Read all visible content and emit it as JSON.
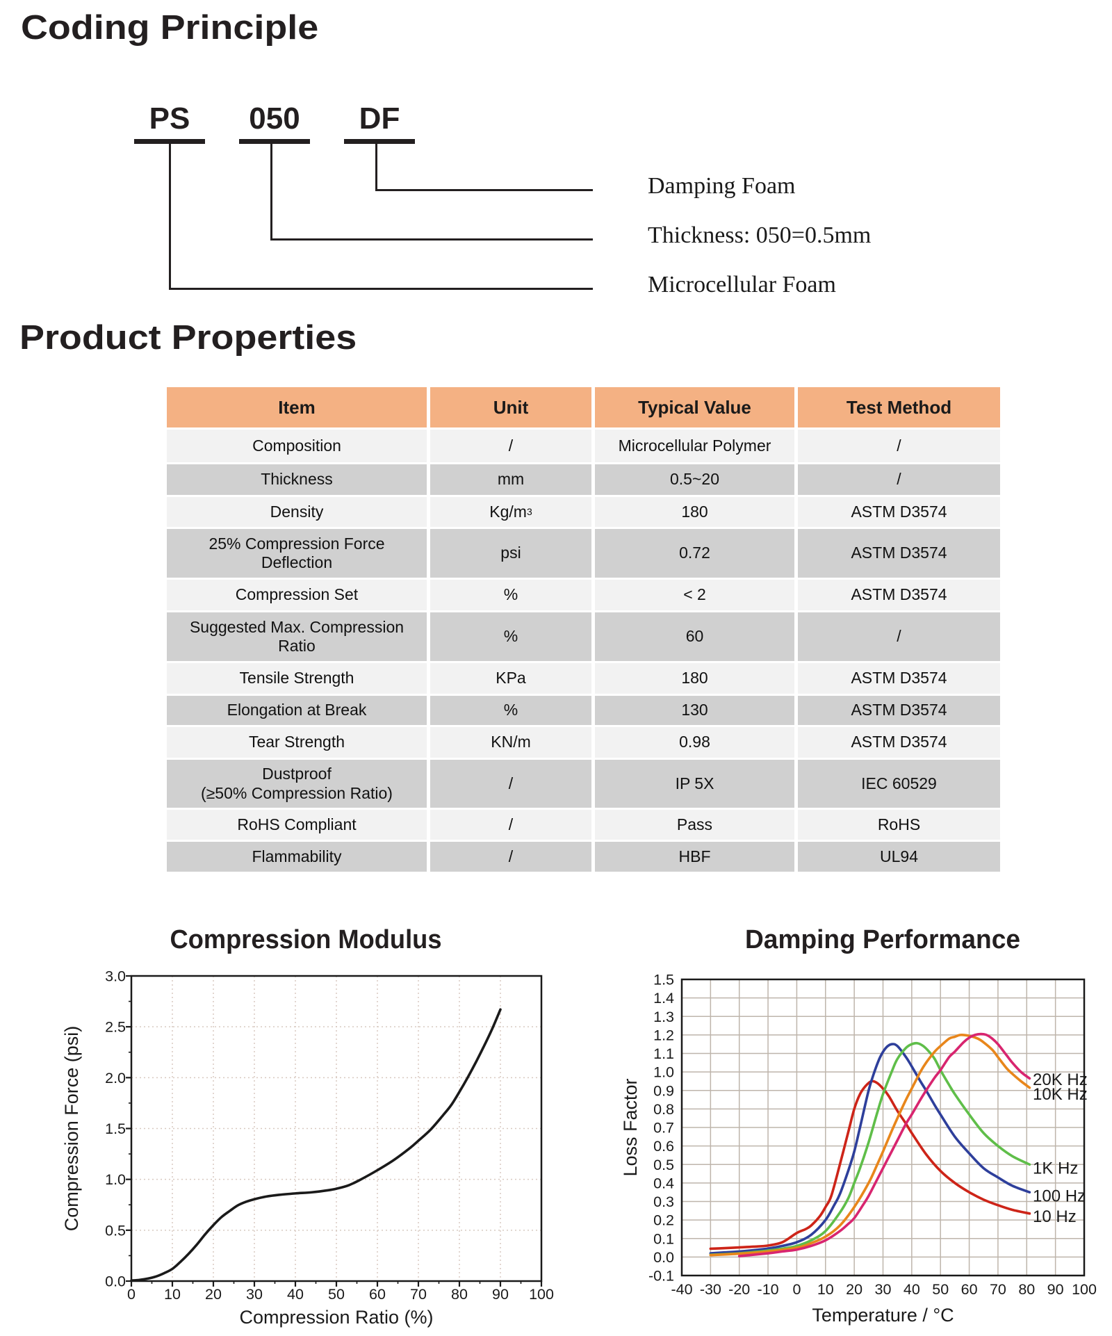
{
  "page": {
    "background": "#ffffff",
    "coding_title": "Coding Principle",
    "properties_title": "Product Properties"
  },
  "coding_diagram": {
    "codes": [
      {
        "code": "PS",
        "label": "Microcellular Foam"
      },
      {
        "code": "050",
        "label": "Thickness: 050=0.5mm"
      },
      {
        "code": "DF",
        "label": "Damping Foam"
      }
    ]
  },
  "properties_table": {
    "columns": [
      "Item",
      "Unit",
      "Typical Value",
      "Test Method"
    ],
    "header_bg": "#f4b183",
    "row_bg_light": "#f2f2f2",
    "row_bg_dark": "#d0d0d0",
    "rows": [
      {
        "item": "Composition",
        "unit": "/",
        "value": "Microcellular Polymer",
        "method": "/"
      },
      {
        "item": "Thickness",
        "unit": "mm",
        "value": "0.5~20",
        "method": "/"
      },
      {
        "item": "Density",
        "unit": "Kg/m³",
        "value": "180",
        "method": "ASTM D3574"
      },
      {
        "item": "25% Compression Force\nDeflection",
        "unit": "psi",
        "value": "0.72",
        "method": "ASTM D3574"
      },
      {
        "item": "Compression Set",
        "unit": "%",
        "value": "< 2",
        "method": "ASTM D3574"
      },
      {
        "item": "Suggested Max. Compression\nRatio",
        "unit": "%",
        "value": "60",
        "method": "/"
      },
      {
        "item": "Tensile Strength",
        "unit": "KPa",
        "value": "180",
        "method": "ASTM D3574"
      },
      {
        "item": "Elongation at Break",
        "unit": "%",
        "value": "130",
        "method": "ASTM D3574"
      },
      {
        "item": "Tear Strength",
        "unit": "KN/m",
        "value": "0.98",
        "method": "ASTM D3574"
      },
      {
        "item": "Dustproof\n(≥50% Compression Ratio)",
        "unit": "/",
        "value": "IP 5X",
        "method": "IEC 60529"
      },
      {
        "item": "RoHS Compliant",
        "unit": "/",
        "value": "Pass",
        "method": "RoHS"
      },
      {
        "item": "Flammability",
        "unit": "/",
        "value": "HBF",
        "method": "UL94"
      }
    ]
  },
  "chart_data": [
    {
      "type": "line",
      "title": "Compression Modulus",
      "xlabel": "Compression Ratio (%)",
      "ylabel": "Compression Force (psi)",
      "xlim": [
        0,
        100
      ],
      "ylim": [
        0.0,
        3.0
      ],
      "x_major_step": 10,
      "x_minor_step": 5,
      "y_major_step": 0.5,
      "y_minor_step": 0.25,
      "x_tick_labels": [
        "0",
        "10",
        "20",
        "30",
        "40",
        "50",
        "60",
        "70",
        "80",
        "90",
        "100"
      ],
      "y_tick_labels": [
        "0.0",
        "0.5",
        "1.0",
        "1.5",
        "2.0",
        "2.5",
        "3.0"
      ],
      "grid": "dotted",
      "grid_color": "#d8c9c0",
      "legend_position": "none",
      "series": [
        {
          "name": "compression force",
          "color": "#1a1a1a",
          "points": [
            [
              0,
              0.005
            ],
            [
              2,
              0.012
            ],
            [
              4,
              0.025
            ],
            [
              6,
              0.045
            ],
            [
              8,
              0.078
            ],
            [
              10,
              0.12
            ],
            [
              12,
              0.19
            ],
            [
              14,
              0.27
            ],
            [
              16,
              0.36
            ],
            [
              18,
              0.46
            ],
            [
              20,
              0.55
            ],
            [
              22,
              0.63
            ],
            [
              24,
              0.69
            ],
            [
              26,
              0.745
            ],
            [
              28,
              0.78
            ],
            [
              30,
              0.805
            ],
            [
              33,
              0.832
            ],
            [
              36,
              0.848
            ],
            [
              40,
              0.862
            ],
            [
              44,
              0.873
            ],
            [
              48,
              0.893
            ],
            [
              50,
              0.908
            ],
            [
              53,
              0.942
            ],
            [
              56,
              1.0
            ],
            [
              60,
              1.09
            ],
            [
              64,
              1.19
            ],
            [
              68,
              1.31
            ],
            [
              70,
              1.38
            ],
            [
              73,
              1.49
            ],
            [
              76,
              1.63
            ],
            [
              78,
              1.73
            ],
            [
              80,
              1.86
            ],
            [
              82,
              2.0
            ],
            [
              84,
              2.15
            ],
            [
              86,
              2.31
            ],
            [
              88,
              2.48
            ],
            [
              90,
              2.67
            ]
          ]
        }
      ]
    },
    {
      "type": "line",
      "title": "Damping Performance",
      "xlabel": "Temperature / °C",
      "ylabel": "Loss Factor",
      "xlim": [
        -40,
        100
      ],
      "ylim": [
        -0.1,
        1.5
      ],
      "x_major_step": 10,
      "y_major_step": 0.1,
      "x_tick_labels": [
        "-40",
        "-30",
        "-20",
        "-10",
        "0",
        "10",
        "20",
        "30",
        "40",
        "50",
        "60",
        "70",
        "80",
        "90",
        "100"
      ],
      "y_tick_labels": [
        "-0.1",
        "0.0",
        "0.1",
        "0.2",
        "0.3",
        "0.4",
        "0.5",
        "0.6",
        "0.7",
        "0.8",
        "0.9",
        "1.0",
        "1.1",
        "1.2",
        "1.3",
        "1.4",
        "1.5"
      ],
      "grid": "solid",
      "grid_color": "#beb5ab",
      "legend_position": "right-inside",
      "series": [
        {
          "name": "10 Hz",
          "color": "#cd2418",
          "label_value": 0.22,
          "points": [
            [
              -30,
              0.045
            ],
            [
              -25,
              0.048
            ],
            [
              -20,
              0.052
            ],
            [
              -15,
              0.056
            ],
            [
              -10,
              0.062
            ],
            [
              -5,
              0.08
            ],
            [
              0,
              0.13
            ],
            [
              3,
              0.15
            ],
            [
              5,
              0.17
            ],
            [
              8,
              0.22
            ],
            [
              10,
              0.27
            ],
            [
              12,
              0.33
            ],
            [
              15,
              0.5
            ],
            [
              18,
              0.68
            ],
            [
              20,
              0.8
            ],
            [
              22,
              0.88
            ],
            [
              24,
              0.925
            ],
            [
              26,
              0.95
            ],
            [
              28,
              0.94
            ],
            [
              30,
              0.91
            ],
            [
              32,
              0.87
            ],
            [
              35,
              0.79
            ],
            [
              38,
              0.72
            ],
            [
              40,
              0.67
            ],
            [
              45,
              0.555
            ],
            [
              50,
              0.465
            ],
            [
              55,
              0.4
            ],
            [
              60,
              0.35
            ],
            [
              65,
              0.31
            ],
            [
              70,
              0.28
            ],
            [
              75,
              0.255
            ],
            [
              81,
              0.235
            ]
          ]
        },
        {
          "name": "100 Hz",
          "color": "#2e3f9b",
          "label_value": 0.33,
          "points": [
            [
              -30,
              0.02
            ],
            [
              -25,
              0.025
            ],
            [
              -20,
              0.03
            ],
            [
              -15,
              0.037
            ],
            [
              -10,
              0.046
            ],
            [
              -5,
              0.06
            ],
            [
              0,
              0.08
            ],
            [
              5,
              0.12
            ],
            [
              10,
              0.2
            ],
            [
              13,
              0.28
            ],
            [
              15,
              0.34
            ],
            [
              18,
              0.47
            ],
            [
              20,
              0.57
            ],
            [
              22,
              0.7
            ],
            [
              25,
              0.9
            ],
            [
              27,
              1.0
            ],
            [
              29,
              1.08
            ],
            [
              31,
              1.13
            ],
            [
              33,
              1.15
            ],
            [
              35,
              1.14
            ],
            [
              38,
              1.08
            ],
            [
              40,
              1.03
            ],
            [
              43,
              0.95
            ],
            [
              45,
              0.9
            ],
            [
              48,
              0.82
            ],
            [
              50,
              0.77
            ],
            [
              55,
              0.65
            ],
            [
              60,
              0.56
            ],
            [
              65,
              0.48
            ],
            [
              70,
              0.43
            ],
            [
              75,
              0.385
            ],
            [
              81,
              0.35
            ]
          ]
        },
        {
          "name": "1K Hz",
          "color": "#5fbe49",
          "label_value": 0.48,
          "points": [
            [
              -30,
              0.012
            ],
            [
              -20,
              0.02
            ],
            [
              -10,
              0.035
            ],
            [
              -5,
              0.045
            ],
            [
              0,
              0.06
            ],
            [
              5,
              0.09
            ],
            [
              10,
              0.14
            ],
            [
              15,
              0.24
            ],
            [
              18,
              0.32
            ],
            [
              20,
              0.4
            ],
            [
              22,
              0.48
            ],
            [
              25,
              0.62
            ],
            [
              28,
              0.78
            ],
            [
              30,
              0.88
            ],
            [
              33,
              1.0
            ],
            [
              35,
              1.07
            ],
            [
              38,
              1.13
            ],
            [
              40,
              1.15
            ],
            [
              42,
              1.155
            ],
            [
              44,
              1.14
            ],
            [
              46,
              1.11
            ],
            [
              48,
              1.07
            ],
            [
              50,
              1.01
            ],
            [
              53,
              0.93
            ],
            [
              55,
              0.88
            ],
            [
              60,
              0.77
            ],
            [
              65,
              0.67
            ],
            [
              70,
              0.6
            ],
            [
              75,
              0.545
            ],
            [
              81,
              0.5
            ]
          ]
        },
        {
          "name": "10K Hz",
          "color": "#e8861b",
          "label_value": 0.88,
          "points": [
            [
              -30,
              0.01
            ],
            [
              -20,
              0.018
            ],
            [
              -10,
              0.03
            ],
            [
              0,
              0.05
            ],
            [
              5,
              0.075
            ],
            [
              10,
              0.11
            ],
            [
              15,
              0.17
            ],
            [
              20,
              0.27
            ],
            [
              25,
              0.4
            ],
            [
              28,
              0.5
            ],
            [
              30,
              0.57
            ],
            [
              33,
              0.68
            ],
            [
              35,
              0.75
            ],
            [
              38,
              0.85
            ],
            [
              40,
              0.91
            ],
            [
              43,
              1.0
            ],
            [
              45,
              1.05
            ],
            [
              48,
              1.11
            ],
            [
              50,
              1.14
            ],
            [
              53,
              1.18
            ],
            [
              55,
              1.19
            ],
            [
              57,
              1.2
            ],
            [
              60,
              1.195
            ],
            [
              63,
              1.18
            ],
            [
              65,
              1.16
            ],
            [
              68,
              1.12
            ],
            [
              70,
              1.08
            ],
            [
              73,
              1.02
            ],
            [
              75,
              0.99
            ],
            [
              78,
              0.95
            ],
            [
              81,
              0.915
            ]
          ]
        },
        {
          "name": "20K Hz",
          "color": "#d8256f",
          "label_value": 0.96,
          "points": [
            [
              -20,
              0.005
            ],
            [
              -10,
              0.02
            ],
            [
              -5,
              0.03
            ],
            [
              0,
              0.04
            ],
            [
              5,
              0.06
            ],
            [
              10,
              0.09
            ],
            [
              15,
              0.14
            ],
            [
              18,
              0.18
            ],
            [
              20,
              0.21
            ],
            [
              23,
              0.28
            ],
            [
              25,
              0.33
            ],
            [
              28,
              0.42
            ],
            [
              30,
              0.48
            ],
            [
              33,
              0.57
            ],
            [
              35,
              0.63
            ],
            [
              38,
              0.72
            ],
            [
              40,
              0.77
            ],
            [
              43,
              0.85
            ],
            [
              45,
              0.9
            ],
            [
              48,
              0.97
            ],
            [
              50,
              1.01
            ],
            [
              53,
              1.08
            ],
            [
              55,
              1.11
            ],
            [
              58,
              1.16
            ],
            [
              60,
              1.185
            ],
            [
              62,
              1.2
            ],
            [
              64,
              1.205
            ],
            [
              66,
              1.2
            ],
            [
              68,
              1.18
            ],
            [
              70,
              1.15
            ],
            [
              73,
              1.09
            ],
            [
              75,
              1.05
            ],
            [
              78,
              1.0
            ],
            [
              81,
              0.965
            ]
          ]
        }
      ]
    }
  ]
}
